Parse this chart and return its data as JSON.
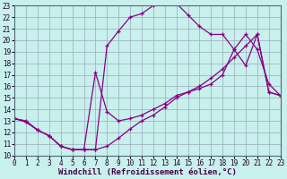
{
  "bg_color": "#c8f0ec",
  "line_color": "#880088",
  "grid_color": "#99aabb",
  "xlabel": "Windchill (Refroidissement éolien,°C)",
  "xlabel_fontsize": 6.5,
  "tick_fontsize": 5.5,
  "xlim": [
    0,
    23
  ],
  "ylim": [
    10,
    23
  ],
  "yticks": [
    10,
    11,
    12,
    13,
    14,
    15,
    16,
    17,
    18,
    19,
    20,
    21,
    22,
    23
  ],
  "xticks": [
    0,
    1,
    2,
    3,
    4,
    5,
    6,
    7,
    8,
    9,
    10,
    11,
    12,
    13,
    14,
    15,
    16,
    17,
    18,
    19,
    20,
    21,
    22,
    23
  ],
  "curve1_x": [
    0,
    1,
    2,
    3,
    4,
    5,
    6,
    7,
    8,
    9,
    10,
    11,
    12,
    13,
    14,
    15,
    16,
    17,
    18,
    19,
    20,
    21,
    22,
    23
  ],
  "curve1_y": [
    13.2,
    13.0,
    12.2,
    11.7,
    10.8,
    10.5,
    10.5,
    10.5,
    10.8,
    11.5,
    12.3,
    13.0,
    13.5,
    14.2,
    15.0,
    15.5,
    16.0,
    16.7,
    17.5,
    18.5,
    19.5,
    20.5,
    15.5,
    15.2
  ],
  "curve2_x": [
    0,
    1,
    2,
    3,
    4,
    5,
    6,
    7,
    8,
    9,
    10,
    11,
    12,
    13,
    14,
    15,
    16,
    17,
    18,
    19,
    20,
    21,
    22,
    23
  ],
  "curve2_y": [
    13.2,
    12.9,
    12.2,
    11.7,
    10.8,
    10.5,
    10.5,
    10.5,
    19.5,
    20.8,
    22.0,
    22.3,
    23.0,
    23.2,
    23.2,
    22.2,
    21.2,
    20.5,
    20.5,
    19.2,
    17.8,
    20.5,
    15.5,
    15.2
  ],
  "curve3_x": [
    0,
    1,
    2,
    3,
    4,
    5,
    6,
    7,
    8,
    9,
    10,
    11,
    12,
    13,
    14,
    15,
    16,
    17,
    18,
    19,
    20,
    21,
    22,
    23
  ],
  "curve3_y": [
    13.2,
    12.9,
    12.2,
    11.7,
    10.8,
    10.5,
    10.5,
    17.2,
    13.8,
    13.0,
    13.2,
    13.5,
    14.0,
    14.5,
    15.2,
    15.5,
    15.8,
    16.2,
    17.0,
    19.2,
    20.5,
    19.2,
    16.2,
    15.2
  ]
}
